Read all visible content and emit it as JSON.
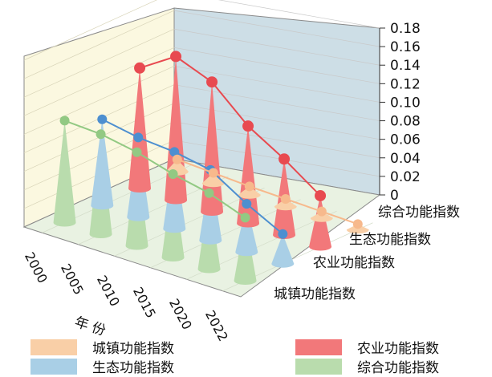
{
  "chart_data": {
    "type": "3d-cone",
    "title": "",
    "xlabel": "年 份",
    "zlabel": "",
    "years": [
      "2000",
      "2005",
      "2010",
      "2015",
      "2020",
      "2022"
    ],
    "zlim": [
      0,
      0.18
    ],
    "zticks": [
      "0",
      "0.02",
      "0.04",
      "0.06",
      "0.08",
      "0.10",
      "0.12",
      "0.14",
      "0.16",
      "0.18"
    ],
    "series": [
      {
        "name": "城镇功能指数",
        "color": "#f9cfa7",
        "values": [
          0.013,
          0.011,
          0.009,
          0.008,
          0.007,
          0.006
        ]
      },
      {
        "name": "农业功能指数",
        "color": "#f2787a",
        "values": [
          0.13,
          0.155,
          0.14,
          0.105,
          0.082,
          0.055
        ]
      },
      {
        "name": "生态功能指数",
        "color": "#a9cfe6",
        "values": [
          0.093,
          0.086,
          0.083,
          0.076,
          0.052,
          0.032
        ]
      },
      {
        "name": "综合功能指数",
        "color": "#b9dcad",
        "values": [
          0.11,
          0.108,
          0.101,
          0.09,
          0.082,
          0.068
        ]
      }
    ],
    "legend_position": "bottom"
  }
}
